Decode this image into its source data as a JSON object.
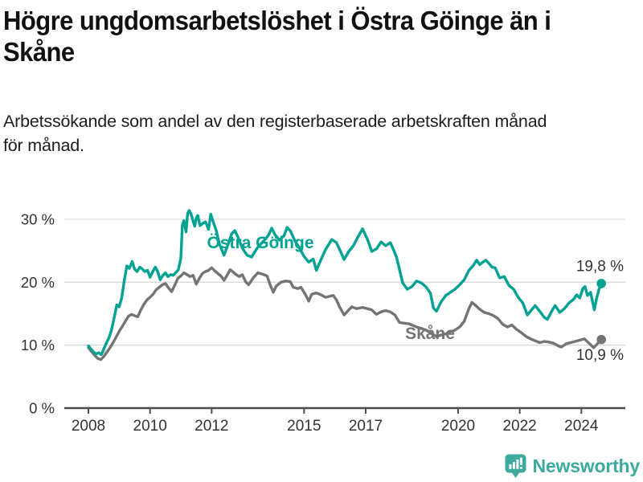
{
  "header": {
    "title": "Högre ungdomsarbetslöshet i Östra Göinge än i Skåne",
    "title_lines": [
      "Högre ungdomsarbetslöshet i Östra Göinge än i",
      "Skåne"
    ],
    "subtitle": "Arbetssökande som andel av den registerbaserade arbetskraften månad för månad.",
    "subtitle_lines": [
      "Arbetssökande som andel av den registerbaserade arbetskraften månad",
      "för månad."
    ]
  },
  "footer": {
    "brand": "Newsworthy",
    "logo_icon": "bar-chart-speech-bubble-icon"
  },
  "colors": {
    "ostra_goinge_line": "#00a294",
    "skane_line": "#747474",
    "axis": "#4d4d4d",
    "axis_text": "#333333",
    "gridline": "#d9d9d9",
    "value_label": "#333333",
    "brand_teal": "#3caa9e",
    "title_text": "#111111"
  },
  "chart_data": {
    "type": "line",
    "title": "Högre ungdomsarbetslöshet i Östra Göinge än i Skåne",
    "subtitle": "Arbetssökande som andel av den registerbaserade arbetskraften månad för månad.",
    "xlabel": "",
    "ylabel": "",
    "grid": "horizontal",
    "legend_position": "inline-labels",
    "x_range": [
      2008,
      2024.9
    ],
    "y_range": [
      0,
      32
    ],
    "x_ticks": [
      2008,
      2010,
      2012,
      2015,
      2017,
      2020,
      2022,
      2024
    ],
    "x_tick_labels": [
      "2008",
      "2010",
      "2012",
      "2015",
      "2017",
      "2020",
      "2022",
      "2024"
    ],
    "y_ticks": [
      0,
      10,
      20,
      30
    ],
    "y_tick_labels": [
      "0 %",
      "10 %",
      "20 %",
      "30 %"
    ],
    "series": [
      {
        "name": "Östra Göinge",
        "color": "#00a294",
        "end_value": 19.8,
        "end_label": "19,8 %",
        "points": [
          [
            2008.0,
            9.9
          ],
          [
            2008.08,
            9.4
          ],
          [
            2008.17,
            8.9
          ],
          [
            2008.25,
            8.6
          ],
          [
            2008.33,
            8.8
          ],
          [
            2008.42,
            8.5
          ],
          [
            2008.5,
            9.4
          ],
          [
            2008.58,
            10.3
          ],
          [
            2008.67,
            11.2
          ],
          [
            2008.75,
            12.4
          ],
          [
            2008.83,
            14.2
          ],
          [
            2008.92,
            16.4
          ],
          [
            2009.0,
            16.1
          ],
          [
            2009.08,
            17.5
          ],
          [
            2009.17,
            20.4
          ],
          [
            2009.25,
            22.6
          ],
          [
            2009.33,
            22.2
          ],
          [
            2009.42,
            23.3
          ],
          [
            2009.5,
            22.1
          ],
          [
            2009.58,
            21.7
          ],
          [
            2009.67,
            22.4
          ],
          [
            2009.75,
            22.1
          ],
          [
            2009.83,
            21.7
          ],
          [
            2009.92,
            21.9
          ],
          [
            2010.0,
            20.8
          ],
          [
            2010.08,
            21.6
          ],
          [
            2010.17,
            22.4
          ],
          [
            2010.25,
            21.7
          ],
          [
            2010.33,
            20.4
          ],
          [
            2010.42,
            21.1
          ],
          [
            2010.5,
            21.5
          ],
          [
            2010.58,
            20.9
          ],
          [
            2010.67,
            21.2
          ],
          [
            2010.75,
            21.1
          ],
          [
            2010.83,
            21.5
          ],
          [
            2010.92,
            22.0
          ],
          [
            2011.0,
            23.8
          ],
          [
            2011.05,
            29.1
          ],
          [
            2011.1,
            29.8
          ],
          [
            2011.17,
            28.0
          ],
          [
            2011.22,
            30.9
          ],
          [
            2011.27,
            31.4
          ],
          [
            2011.33,
            30.9
          ],
          [
            2011.4,
            29.7
          ],
          [
            2011.45,
            28.9
          ],
          [
            2011.5,
            30.2
          ],
          [
            2011.55,
            30.6
          ],
          [
            2011.62,
            29.0
          ],
          [
            2011.7,
            29.3
          ],
          [
            2011.8,
            29.6
          ],
          [
            2011.9,
            28.4
          ],
          [
            2011.97,
            30.8
          ],
          [
            2012.05,
            29.6
          ],
          [
            2012.15,
            28.2
          ],
          [
            2012.25,
            26.1
          ],
          [
            2012.4,
            24.3
          ],
          [
            2012.55,
            26.2
          ],
          [
            2012.65,
            27.7
          ],
          [
            2012.75,
            28.2
          ],
          [
            2012.85,
            27.2
          ],
          [
            2013.0,
            25.4
          ],
          [
            2013.15,
            24.3
          ],
          [
            2013.3,
            24.0
          ],
          [
            2013.5,
            25.6
          ],
          [
            2013.7,
            26.6
          ],
          [
            2013.85,
            27.5
          ],
          [
            2013.95,
            28.6
          ],
          [
            2014.05,
            27.6
          ],
          [
            2014.2,
            26.7
          ],
          [
            2014.35,
            27.4
          ],
          [
            2014.45,
            28.7
          ],
          [
            2014.55,
            28.2
          ],
          [
            2014.7,
            26.6
          ],
          [
            2014.85,
            25.4
          ],
          [
            2015.0,
            24.1
          ],
          [
            2015.15,
            23.2
          ],
          [
            2015.3,
            23.7
          ],
          [
            2015.4,
            21.9
          ],
          [
            2015.55,
            23.6
          ],
          [
            2015.7,
            25.2
          ],
          [
            2015.9,
            26.8
          ],
          [
            2016.05,
            26.3
          ],
          [
            2016.2,
            24.7
          ],
          [
            2016.3,
            23.6
          ],
          [
            2016.45,
            24.9
          ],
          [
            2016.6,
            25.8
          ],
          [
            2016.75,
            27.2
          ],
          [
            2016.9,
            28.5
          ],
          [
            2017.05,
            26.9
          ],
          [
            2017.2,
            24.9
          ],
          [
            2017.35,
            25.3
          ],
          [
            2017.5,
            26.4
          ],
          [
            2017.65,
            25.8
          ],
          [
            2017.8,
            26.3
          ],
          [
            2017.9,
            25.2
          ],
          [
            2018.0,
            24.0
          ],
          [
            2018.1,
            22.0
          ],
          [
            2018.2,
            19.9
          ],
          [
            2018.35,
            18.9
          ],
          [
            2018.5,
            19.3
          ],
          [
            2018.65,
            20.2
          ],
          [
            2018.8,
            19.9
          ],
          [
            2018.95,
            19.3
          ],
          [
            2019.1,
            18.3
          ],
          [
            2019.2,
            15.9
          ],
          [
            2019.3,
            15.4
          ],
          [
            2019.45,
            16.9
          ],
          [
            2019.6,
            17.9
          ],
          [
            2019.75,
            18.4
          ],
          [
            2019.9,
            18.9
          ],
          [
            2020.05,
            19.6
          ],
          [
            2020.2,
            20.4
          ],
          [
            2020.35,
            21.9
          ],
          [
            2020.5,
            22.7
          ],
          [
            2020.6,
            23.5
          ],
          [
            2020.7,
            22.8
          ],
          [
            2020.8,
            23.2
          ],
          [
            2020.9,
            23.5
          ],
          [
            2021.0,
            23.0
          ],
          [
            2021.1,
            22.4
          ],
          [
            2021.2,
            22.3
          ],
          [
            2021.35,
            20.7
          ],
          [
            2021.5,
            20.9
          ],
          [
            2021.65,
            19.5
          ],
          [
            2021.8,
            18.9
          ],
          [
            2021.95,
            17.6
          ],
          [
            2022.1,
            16.7
          ],
          [
            2022.25,
            14.8
          ],
          [
            2022.4,
            15.7
          ],
          [
            2022.5,
            16.3
          ],
          [
            2022.65,
            15.4
          ],
          [
            2022.8,
            14.4
          ],
          [
            2022.9,
            14.1
          ],
          [
            2023.05,
            15.5
          ],
          [
            2023.15,
            16.3
          ],
          [
            2023.3,
            15.2
          ],
          [
            2023.45,
            15.8
          ],
          [
            2023.6,
            16.7
          ],
          [
            2023.75,
            17.3
          ],
          [
            2023.85,
            18.0
          ],
          [
            2023.95,
            17.5
          ],
          [
            2024.05,
            19.0
          ],
          [
            2024.12,
            19.3
          ],
          [
            2024.2,
            17.9
          ],
          [
            2024.3,
            18.4
          ],
          [
            2024.42,
            15.6
          ],
          [
            2024.5,
            17.5
          ],
          [
            2024.58,
            19.0
          ],
          [
            2024.65,
            19.8
          ]
        ]
      },
      {
        "name": "Skåne",
        "color": "#747474",
        "end_value": 10.9,
        "end_label": "10,9 %",
        "points": [
          [
            2008.0,
            9.6
          ],
          [
            2008.1,
            9.0
          ],
          [
            2008.2,
            8.4
          ],
          [
            2008.3,
            7.9
          ],
          [
            2008.4,
            7.7
          ],
          [
            2008.5,
            8.2
          ],
          [
            2008.6,
            8.9
          ],
          [
            2008.7,
            9.6
          ],
          [
            2008.8,
            10.4
          ],
          [
            2008.9,
            11.3
          ],
          [
            2009.0,
            12.2
          ],
          [
            2009.1,
            13.0
          ],
          [
            2009.2,
            13.8
          ],
          [
            2009.3,
            14.6
          ],
          [
            2009.4,
            14.9
          ],
          [
            2009.5,
            14.7
          ],
          [
            2009.6,
            14.5
          ],
          [
            2009.7,
            15.6
          ],
          [
            2009.8,
            16.5
          ],
          [
            2009.9,
            17.2
          ],
          [
            2010.0,
            17.6
          ],
          [
            2010.1,
            18.1
          ],
          [
            2010.2,
            18.8
          ],
          [
            2010.3,
            19.2
          ],
          [
            2010.4,
            19.6
          ],
          [
            2010.5,
            19.8
          ],
          [
            2010.6,
            19.1
          ],
          [
            2010.7,
            18.5
          ],
          [
            2010.8,
            19.5
          ],
          [
            2010.9,
            20.6
          ],
          [
            2011.0,
            21.0
          ],
          [
            2011.1,
            21.5
          ],
          [
            2011.2,
            21.2
          ],
          [
            2011.3,
            20.9
          ],
          [
            2011.4,
            21.1
          ],
          [
            2011.5,
            19.7
          ],
          [
            2011.6,
            20.6
          ],
          [
            2011.7,
            21.4
          ],
          [
            2011.8,
            21.7
          ],
          [
            2011.9,
            21.9
          ],
          [
            2012.0,
            22.3
          ],
          [
            2012.1,
            21.8
          ],
          [
            2012.2,
            21.4
          ],
          [
            2012.3,
            21.0
          ],
          [
            2012.4,
            20.3
          ],
          [
            2012.5,
            21.1
          ],
          [
            2012.6,
            22.0
          ],
          [
            2012.7,
            21.6
          ],
          [
            2012.8,
            21.2
          ],
          [
            2012.9,
            20.9
          ],
          [
            2013.0,
            21.2
          ],
          [
            2013.1,
            20.1
          ],
          [
            2013.2,
            19.6
          ],
          [
            2013.35,
            20.7
          ],
          [
            2013.5,
            21.5
          ],
          [
            2013.65,
            21.3
          ],
          [
            2013.8,
            21.0
          ],
          [
            2013.9,
            19.6
          ],
          [
            2014.0,
            18.4
          ],
          [
            2014.1,
            19.4
          ],
          [
            2014.25,
            20.0
          ],
          [
            2014.4,
            20.2
          ],
          [
            2014.55,
            20.1
          ],
          [
            2014.65,
            19.2
          ],
          [
            2014.8,
            19.0
          ],
          [
            2014.9,
            19.2
          ],
          [
            2015.05,
            18.0
          ],
          [
            2015.15,
            17.0
          ],
          [
            2015.25,
            18.1
          ],
          [
            2015.4,
            18.3
          ],
          [
            2015.55,
            18.0
          ],
          [
            2015.7,
            17.6
          ],
          [
            2015.85,
            17.8
          ],
          [
            2015.95,
            17.9
          ],
          [
            2016.05,
            17.2
          ],
          [
            2016.15,
            16.1
          ],
          [
            2016.3,
            14.8
          ],
          [
            2016.45,
            15.6
          ],
          [
            2016.55,
            16.1
          ],
          [
            2016.7,
            15.8
          ],
          [
            2016.9,
            16.0
          ],
          [
            2017.05,
            15.8
          ],
          [
            2017.2,
            15.6
          ],
          [
            2017.35,
            14.9
          ],
          [
            2017.5,
            15.3
          ],
          [
            2017.65,
            15.5
          ],
          [
            2017.8,
            15.3
          ],
          [
            2017.95,
            14.8
          ],
          [
            2018.1,
            13.6
          ],
          [
            2018.25,
            13.5
          ],
          [
            2018.4,
            13.4
          ],
          [
            2018.55,
            13.1
          ],
          [
            2018.7,
            12.8
          ],
          [
            2018.85,
            12.6
          ],
          [
            2019.0,
            12.3
          ],
          [
            2019.15,
            11.8
          ],
          [
            2019.3,
            11.4
          ],
          [
            2019.45,
            11.6
          ],
          [
            2019.6,
            11.8
          ],
          [
            2019.75,
            12.1
          ],
          [
            2019.9,
            12.4
          ],
          [
            2020.05,
            12.9
          ],
          [
            2020.2,
            13.8
          ],
          [
            2020.35,
            15.8
          ],
          [
            2020.45,
            16.8
          ],
          [
            2020.55,
            16.4
          ],
          [
            2020.7,
            15.7
          ],
          [
            2020.85,
            15.2
          ],
          [
            2021.0,
            15.0
          ],
          [
            2021.15,
            14.7
          ],
          [
            2021.3,
            14.2
          ],
          [
            2021.45,
            13.3
          ],
          [
            2021.6,
            12.9
          ],
          [
            2021.75,
            13.2
          ],
          [
            2021.9,
            12.5
          ],
          [
            2022.05,
            12.0
          ],
          [
            2022.2,
            11.4
          ],
          [
            2022.35,
            11.0
          ],
          [
            2022.5,
            10.7
          ],
          [
            2022.65,
            10.4
          ],
          [
            2022.8,
            10.6
          ],
          [
            2022.95,
            10.5
          ],
          [
            2023.1,
            10.3
          ],
          [
            2023.25,
            9.9
          ],
          [
            2023.35,
            9.7
          ],
          [
            2023.5,
            10.2
          ],
          [
            2023.65,
            10.4
          ],
          [
            2023.8,
            10.6
          ],
          [
            2023.95,
            10.8
          ],
          [
            2024.1,
            11.0
          ],
          [
            2024.25,
            10.3
          ],
          [
            2024.4,
            9.6
          ],
          [
            2024.5,
            10.1
          ],
          [
            2024.58,
            10.6
          ],
          [
            2024.65,
            10.9
          ]
        ]
      }
    ]
  }
}
